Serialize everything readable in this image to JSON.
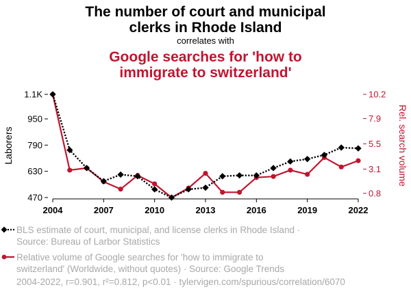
{
  "title_lines": [
    "The number of court and municipal",
    "clerks in Rhode Island"
  ],
  "subtitle": "correlates with",
  "headline_lines": [
    "Google searches for 'how to",
    "immigrate to switzerland'"
  ],
  "colors": {
    "series1": "#000000",
    "series2": "#c0152f",
    "muted": "#a8a8a8"
  },
  "chart_data": {
    "type": "line",
    "x": [
      2004,
      2005,
      2006,
      2007,
      2008,
      2009,
      2010,
      2011,
      2012,
      2013,
      2014,
      2015,
      2016,
      2017,
      2018,
      2019,
      2020,
      2021,
      2022
    ],
    "xticks": [
      "2004",
      "2007",
      "2010",
      "2013",
      "2016",
      "2019",
      "2022"
    ],
    "xlim": [
      2004,
      2022
    ],
    "series": [
      {
        "name": "BLS estimate of court, municipal, and license clerks in Rhode Island",
        "axis": "left",
        "style": "dotted",
        "marker": "diamond",
        "values": [
          1100,
          760,
          650,
          570,
          610,
          600,
          520,
          470,
          520,
          530,
          600,
          605,
          605,
          650,
          690,
          705,
          730,
          775,
          770
        ]
      },
      {
        "name": "Relative volume of Google searches for 'how to immigrate to switzerland'",
        "axis": "right",
        "style": "solid",
        "marker": "circle",
        "values": [
          10.2,
          3.0,
          3.2,
          1.9,
          1.2,
          2.5,
          1.7,
          0.4,
          1.3,
          2.7,
          0.9,
          0.9,
          2.3,
          2.4,
          3.0,
          2.6,
          4.2,
          3.3,
          3.9
        ]
      }
    ],
    "left_axis": {
      "label": "Laborers",
      "ticks": [
        470,
        630,
        790,
        950,
        1100
      ],
      "tick_labels": [
        "470",
        "630",
        "790",
        "950",
        "1.1K"
      ],
      "ylim": [
        470,
        1100
      ]
    },
    "right_axis": {
      "label": "Rel. search volume",
      "ticks": [
        0.8,
        3.1,
        5.5,
        7.9,
        10.2
      ],
      "tick_labels": [
        "0.8",
        "3.1",
        "5.5",
        "7.9",
        "10.2"
      ],
      "ylim": [
        0.4,
        10.2
      ]
    }
  },
  "legend": [
    {
      "text_lines": [
        "BLS estimate of court, municipal, and license clerks in Rhode Island ·",
        "Source: Bureau of Larbor Statistics"
      ]
    },
    {
      "text_lines": [
        "Relative volume of Google searches for 'how to immigrate to",
        "switzerland' (Worldwide, without quotes) · Source: Google Trends"
      ]
    }
  ],
  "footer": "2004-2022, r=0.901, r²=0.812, p<0.01 · tylervigen.com/spurious/correlation/6070"
}
